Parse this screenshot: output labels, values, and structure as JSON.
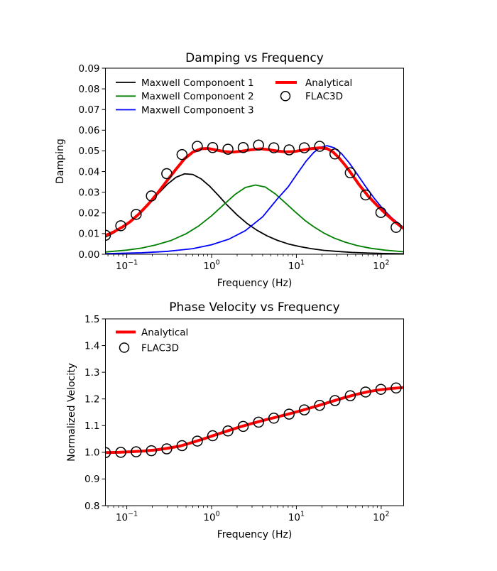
{
  "figure": {
    "background_color": "#ffffff"
  },
  "chart_data": [
    {
      "type": "line",
      "title": "Damping vs Frequency",
      "xlabel": "Frequency (Hz)",
      "ylabel": "Damping",
      "xscale": "log",
      "xlim": [
        0.056,
        184
      ],
      "ylim": [
        0.0,
        0.09
      ],
      "grid": false,
      "legend_position": "upper-left-inside-two-columns-no-frame",
      "xtick_exponents": [
        -1,
        0,
        1,
        2
      ],
      "ytick_values": [
        0.0,
        0.01,
        0.02,
        0.03,
        0.04,
        0.05,
        0.06,
        0.07,
        0.08,
        0.09
      ],
      "ytick_labels": [
        "0.00",
        "0.01",
        "0.02",
        "0.03",
        "0.04",
        "0.05",
        "0.06",
        "0.07",
        "0.08",
        "0.09"
      ],
      "series": [
        {
          "name": "Maxwell Componoent 1",
          "color": "#000000",
          "linewidth": 1.8,
          "x": [
            0.056,
            0.07,
            0.09,
            0.11,
            0.14,
            0.18,
            0.23,
            0.3,
            0.38,
            0.48,
            0.6,
            0.75,
            0.95,
            1.2,
            1.5,
            2,
            2.6,
            3.4,
            4.5,
            6,
            8,
            11,
            15,
            21,
            30,
            45,
            70,
            110,
            184
          ],
          "y": [
            0.0083,
            0.0103,
            0.0131,
            0.0158,
            0.0196,
            0.0241,
            0.0289,
            0.0338,
            0.0372,
            0.0389,
            0.0386,
            0.0365,
            0.0329,
            0.0285,
            0.0241,
            0.019,
            0.015,
            0.0117,
            0.0089,
            0.0067,
            0.005,
            0.0037,
            0.0027,
            0.0019,
            0.0014,
            0.0009,
            0.0006,
            0.0004,
            0.0002
          ]
        },
        {
          "name": "Maxwell Componoent 2",
          "color": "#008000",
          "linewidth": 1.8,
          "x": [
            0.056,
            0.1,
            0.15,
            0.22,
            0.33,
            0.5,
            0.7,
            1,
            1.4,
            1.9,
            2.5,
            3.3,
            4.3,
            5.6,
            7.3,
            9.5,
            12.5,
            16,
            21,
            28,
            38,
            52,
            75,
            110,
            184
          ],
          "y": [
            0.0011,
            0.002,
            0.003,
            0.0045,
            0.0066,
            0.0099,
            0.0136,
            0.0186,
            0.0241,
            0.029,
            0.0323,
            0.0335,
            0.0325,
            0.0293,
            0.0251,
            0.0208,
            0.0165,
            0.0133,
            0.0103,
            0.0078,
            0.0058,
            0.0042,
            0.0029,
            0.002,
            0.0012
          ]
        },
        {
          "name": "Maxwell Componoent 3",
          "color": "#0000ff",
          "linewidth": 1.8,
          "x": [
            0.056,
            0.15,
            0.3,
            0.6,
            1,
            1.6,
            2.5,
            4,
            6,
            8,
            10,
            13,
            16,
            19,
            23,
            28,
            34,
            42,
            52,
            65,
            82,
            105,
            135,
            184
          ],
          "y": [
            0.0003,
            0.0007,
            0.0014,
            0.0027,
            0.0046,
            0.0073,
            0.0114,
            0.0181,
            0.0269,
            0.0326,
            0.0384,
            0.045,
            0.0492,
            0.0516,
            0.0525,
            0.0515,
            0.0487,
            0.0442,
            0.0388,
            0.033,
            0.0273,
            0.0219,
            0.0174,
            0.0129
          ]
        },
        {
          "name": "Analytical",
          "color": "#ff0000",
          "linewidth": 4,
          "x": [
            0.056,
            0.07,
            0.09,
            0.11,
            0.14,
            0.18,
            0.23,
            0.3,
            0.38,
            0.48,
            0.6,
            0.75,
            0.9,
            1.1,
            1.4,
            1.8,
            2.3,
            3,
            3.8,
            4.7,
            6,
            7.5,
            9.5,
            12,
            15,
            19,
            23,
            27,
            32,
            38,
            45,
            55,
            70,
            90,
            115,
            145,
            184
          ],
          "y": [
            0.0091,
            0.0108,
            0.0133,
            0.0158,
            0.0196,
            0.0243,
            0.0295,
            0.0357,
            0.0411,
            0.0462,
            0.0494,
            0.051,
            0.0512,
            0.0505,
            0.0497,
            0.0494,
            0.0499,
            0.0506,
            0.051,
            0.0506,
            0.0499,
            0.0495,
            0.0497,
            0.0504,
            0.0511,
            0.0515,
            0.0511,
            0.0495,
            0.0465,
            0.0428,
            0.0387,
            0.0336,
            0.0282,
            0.0235,
            0.0193,
            0.0157,
            0.0124
          ]
        }
      ],
      "scatter": {
        "name": "FLAC3D",
        "marker": "open-circle",
        "color": "#000000",
        "x": [
          0.056,
          0.085,
          0.129,
          0.195,
          0.296,
          0.448,
          0.679,
          1.03,
          1.56,
          2.36,
          3.58,
          5.42,
          8.21,
          12.4,
          18.8,
          28.5,
          43.2,
          65.5,
          99.2,
          150
        ],
        "y": [
          0.0092,
          0.0138,
          0.0193,
          0.0282,
          0.039,
          0.0482,
          0.0522,
          0.0516,
          0.0508,
          0.0516,
          0.0528,
          0.0515,
          0.0505,
          0.0515,
          0.0522,
          0.0485,
          0.0394,
          0.0287,
          0.0202,
          0.013
        ]
      }
    },
    {
      "type": "line",
      "title": "Phase Velocity vs Frequency",
      "xlabel": "Frequency (Hz)",
      "ylabel": "Normalized Velocity",
      "xscale": "log",
      "xlim": [
        0.056,
        184
      ],
      "ylim": [
        0.8,
        1.5
      ],
      "grid": false,
      "legend_position": "upper-left-inside-no-frame",
      "xtick_exponents": [
        -1,
        0,
        1,
        2
      ],
      "ytick_values": [
        0.8,
        0.9,
        1.0,
        1.1,
        1.2,
        1.3,
        1.4,
        1.5
      ],
      "ytick_labels": [
        "0.8",
        "0.9",
        "1.0",
        "1.1",
        "1.2",
        "1.3",
        "1.4",
        "1.5"
      ],
      "series": [
        {
          "name": "Analytical",
          "color": "#ff0000",
          "linewidth": 4,
          "x": [
            0.056,
            0.08,
            0.11,
            0.16,
            0.22,
            0.3,
            0.42,
            0.58,
            0.8,
            1.1,
            1.5,
            2.1,
            2.9,
            4,
            5.5,
            7.5,
            10.5,
            14.5,
            20,
            27,
            37,
            51,
            70,
            95,
            130,
            184
          ],
          "y": [
            0.999,
            1.0,
            1.002,
            1.005,
            1.009,
            1.015,
            1.023,
            1.036,
            1.05,
            1.065,
            1.079,
            1.094,
            1.107,
            1.119,
            1.13,
            1.141,
            1.153,
            1.166,
            1.179,
            1.192,
            1.205,
            1.217,
            1.227,
            1.234,
            1.239,
            1.243
          ]
        }
      ],
      "scatter": {
        "name": "FLAC3D",
        "marker": "open-circle",
        "color": "#000000",
        "x": [
          0.056,
          0.085,
          0.129,
          0.195,
          0.296,
          0.448,
          0.679,
          1.03,
          1.56,
          2.36,
          3.58,
          5.42,
          8.21,
          12.4,
          18.8,
          28.5,
          43.2,
          65.5,
          99.2,
          150
        ],
        "y": [
          0.999,
          1.0,
          1.002,
          1.006,
          1.013,
          1.025,
          1.042,
          1.062,
          1.08,
          1.097,
          1.113,
          1.128,
          1.143,
          1.159,
          1.176,
          1.194,
          1.212,
          1.226,
          1.236,
          1.241
        ]
      }
    }
  ]
}
